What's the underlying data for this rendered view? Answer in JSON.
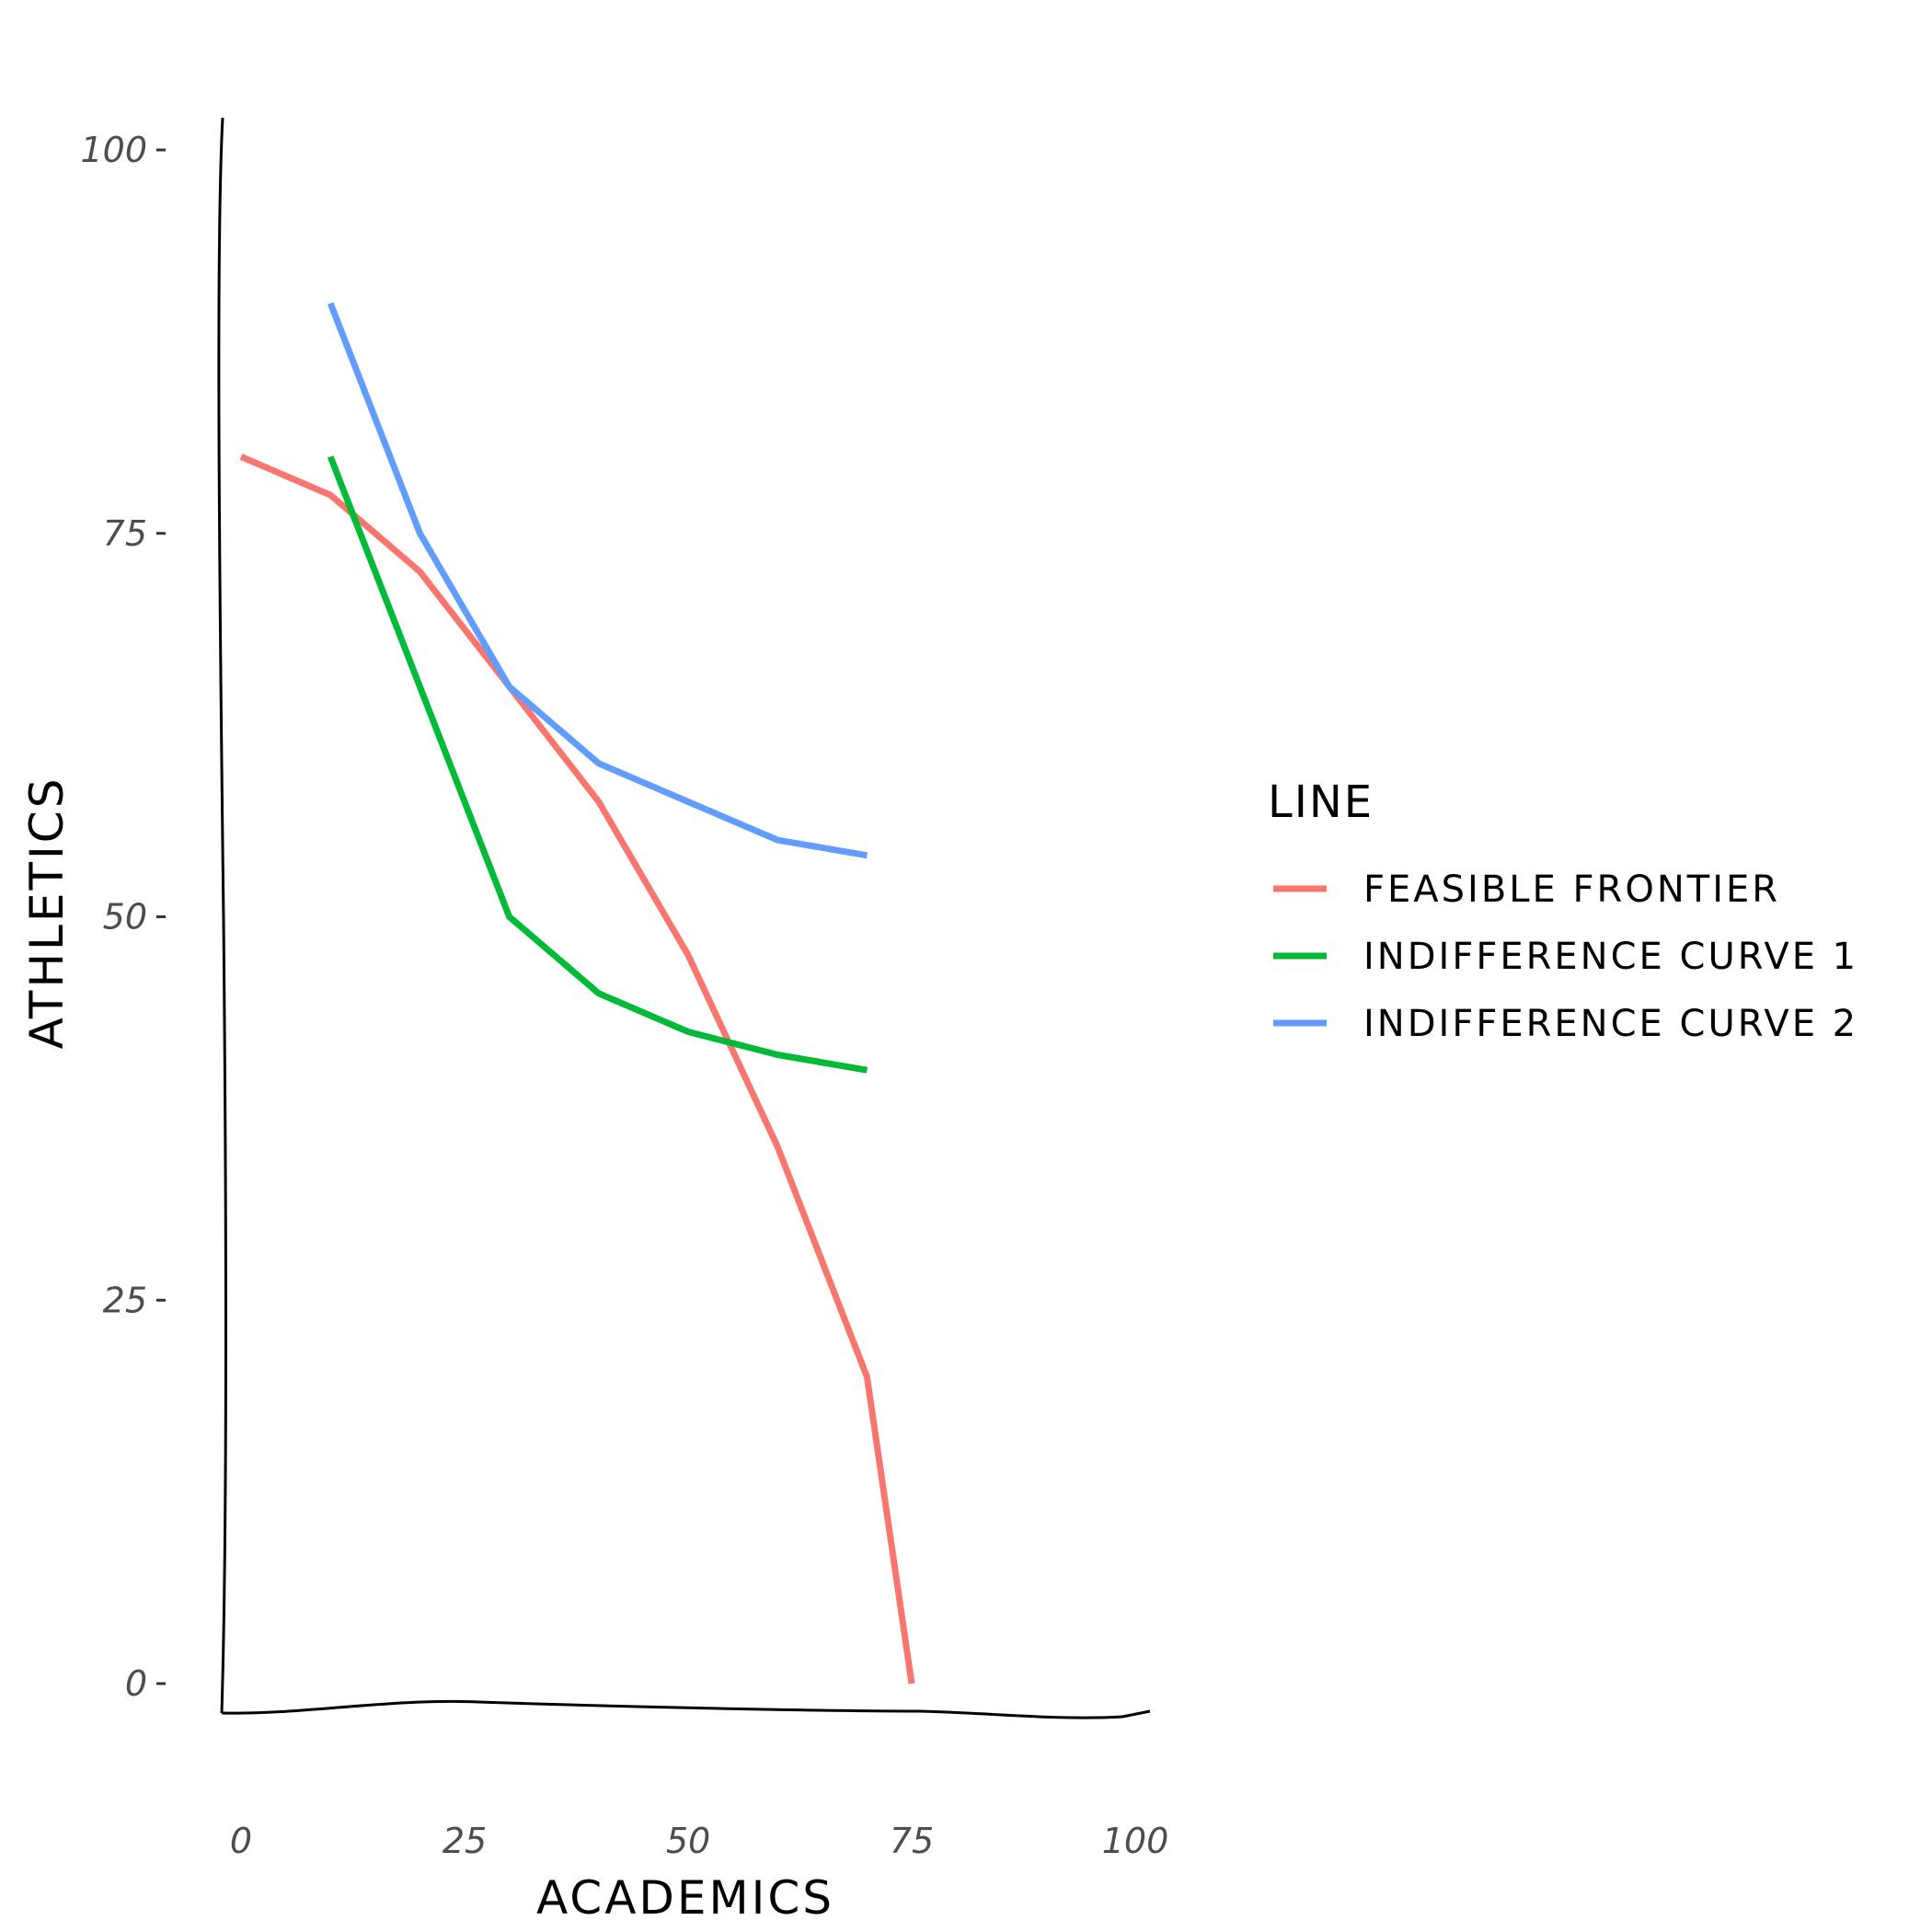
{
  "chart_data": {
    "type": "line",
    "title": "",
    "xlabel": "ACADEMICS",
    "ylabel": "ATHLETICS",
    "xlim": [
      -3,
      102
    ],
    "ylim": [
      -2,
      102
    ],
    "x_ticks": [
      0,
      25,
      50,
      75,
      100
    ],
    "x_tick_labels": [
      "0",
      "25",
      "50",
      "75",
      "100"
    ],
    "y_ticks": [
      0,
      25,
      50,
      75,
      100
    ],
    "y_tick_labels": [
      "0",
      "25",
      "50",
      "75",
      "100"
    ],
    "grid": false,
    "legend": {
      "title": "LINE",
      "position": "right"
    },
    "series": [
      {
        "name": "FEASIBLE FRONTIER",
        "color": "#F8766D",
        "x": [
          0,
          10,
          20,
          30,
          40,
          50,
          60,
          70,
          75
        ],
        "y": [
          80,
          77.5,
          72.5,
          65,
          57.5,
          47.5,
          35,
          20,
          0
        ]
      },
      {
        "name": "INDIFFERENCE CURVE 1",
        "color": "#00BA38",
        "x": [
          10,
          20,
          30,
          40,
          50,
          60,
          70
        ],
        "y": [
          80,
          65,
          50,
          45,
          42.5,
          41,
          40
        ]
      },
      {
        "name": "INDIFFERENCE CURVE 2",
        "color": "#619CFF",
        "x": [
          10,
          20,
          30,
          40,
          50,
          60,
          70
        ],
        "y": [
          90,
          75,
          65,
          60,
          57.5,
          55,
          54
        ]
      }
    ]
  }
}
